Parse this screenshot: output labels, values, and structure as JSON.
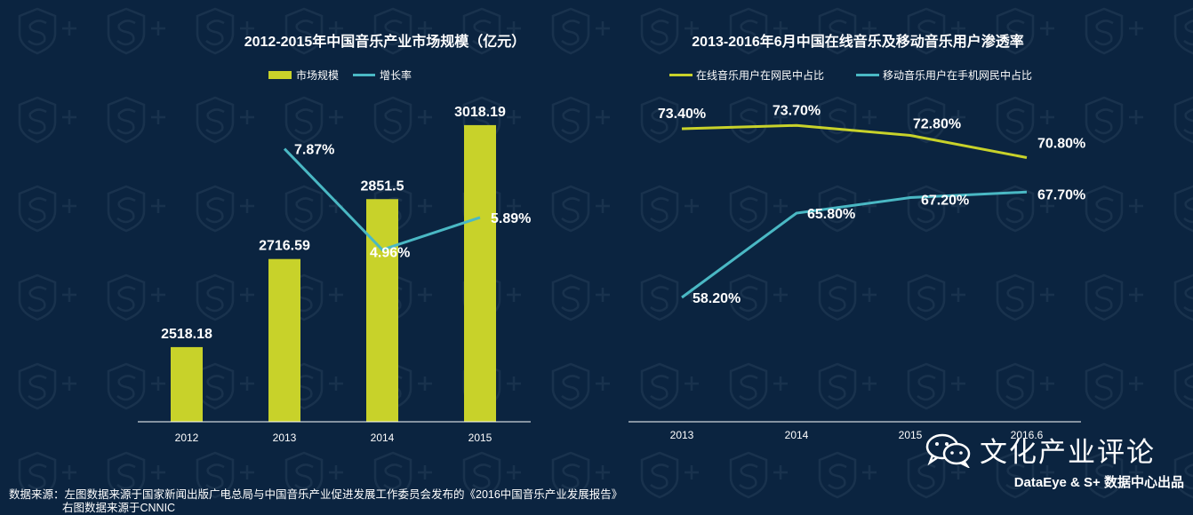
{
  "colors": {
    "background": "#0b2440",
    "bar": "#c8d22a",
    "line_growth": "#4ab8c4",
    "line_online": "#c8d22a",
    "line_mobile": "#4ab8c4",
    "axis": "#ffffff"
  },
  "chart_data": [
    {
      "type": "bar",
      "title": "2012-2015年中国音乐产业市场规模（亿元）",
      "categories": [
        "2012",
        "2013",
        "2014",
        "2015"
      ],
      "series": [
        {
          "name": "市场规模",
          "kind": "bar",
          "values": [
            2518.18,
            2716.59,
            2851.5,
            3018.19
          ],
          "labels": [
            "2518.18",
            "2716.59",
            "2851.5",
            "3018.19"
          ]
        },
        {
          "name": "增长率",
          "kind": "line",
          "values": [
            null,
            7.87,
            4.96,
            5.89
          ],
          "labels": [
            "",
            "7.87%",
            "4.96%",
            "5.89%"
          ]
        }
      ],
      "ylim": [
        2350,
        3100
      ],
      "growth_ylim": [
        0,
        9.6
      ],
      "legend_position": "top-center"
    },
    {
      "type": "line",
      "title": "2013-2016年6月中国在线音乐及移动音乐用户渗透率",
      "categories": [
        "2013",
        "2014",
        "2015",
        "2016.6"
      ],
      "series": [
        {
          "name": "在线音乐用户在网民中占比",
          "values": [
            73.4,
            73.7,
            72.8,
            70.8
          ],
          "labels": [
            "73.40%",
            "73.70%",
            "72.80%",
            "70.80%"
          ]
        },
        {
          "name": "移动音乐用户在手机网民中占比",
          "values": [
            58.2,
            65.8,
            67.2,
            67.7
          ],
          "labels": [
            "58.20%",
            "65.80%",
            "67.20%",
            "67.70%"
          ]
        }
      ],
      "ylim": [
        47,
        77
      ],
      "legend_position": "top-center"
    }
  ],
  "footer": {
    "source_line1": "数据来源：左图数据来源于国家新闻出版广电总局与中国音乐产业促进发展工作委员会发布的《2016中国音乐产业发展报告》",
    "source_line2": "右图数据来源于CNNIC"
  },
  "watermark": {
    "text": "文化产业评论",
    "icon": "wechat-icon"
  },
  "brand": {
    "text": "DataEye & S+ 数据中心出品"
  }
}
